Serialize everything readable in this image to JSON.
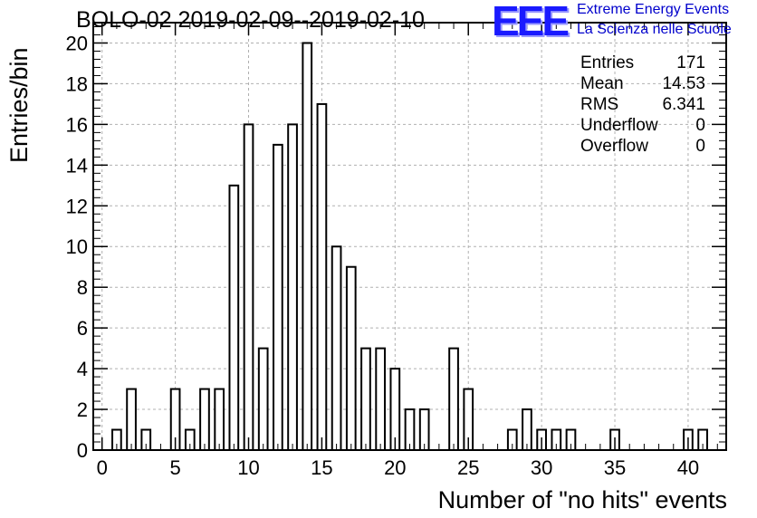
{
  "chart_data": {
    "type": "bar",
    "title": "BOLO-02 2019-02-09--2019-02-10",
    "xlabel": "Number of \"no hits\" events",
    "ylabel": "Entries/bin",
    "xlim": [
      -0.6,
      42.6
    ],
    "ylim": [
      0,
      21
    ],
    "xticks": [
      0,
      5,
      10,
      15,
      20,
      25,
      30,
      35,
      40
    ],
    "yticks": [
      0,
      2,
      4,
      6,
      8,
      10,
      12,
      14,
      16,
      18,
      20
    ],
    "grid": true,
    "bins": [
      {
        "x": 1,
        "value": 1
      },
      {
        "x": 2,
        "value": 3
      },
      {
        "x": 3,
        "value": 1
      },
      {
        "x": 5,
        "value": 3
      },
      {
        "x": 6,
        "value": 1
      },
      {
        "x": 7,
        "value": 3
      },
      {
        "x": 8,
        "value": 3
      },
      {
        "x": 9,
        "value": 13
      },
      {
        "x": 10,
        "value": 16
      },
      {
        "x": 11,
        "value": 5
      },
      {
        "x": 12,
        "value": 15
      },
      {
        "x": 13,
        "value": 16
      },
      {
        "x": 14,
        "value": 20
      },
      {
        "x": 15,
        "value": 17
      },
      {
        "x": 16,
        "value": 10
      },
      {
        "x": 17,
        "value": 9
      },
      {
        "x": 18,
        "value": 5
      },
      {
        "x": 19,
        "value": 5
      },
      {
        "x": 20,
        "value": 4
      },
      {
        "x": 21,
        "value": 2
      },
      {
        "x": 22,
        "value": 2
      },
      {
        "x": 24,
        "value": 5
      },
      {
        "x": 25,
        "value": 3
      },
      {
        "x": 28,
        "value": 1
      },
      {
        "x": 29,
        "value": 2
      },
      {
        "x": 30,
        "value": 1
      },
      {
        "x": 31,
        "value": 1
      },
      {
        "x": 32,
        "value": 1
      },
      {
        "x": 35,
        "value": 1
      },
      {
        "x": 40,
        "value": 1
      },
      {
        "x": 41,
        "value": 1
      }
    ],
    "stats": [
      {
        "label": "Entries",
        "value": "171"
      },
      {
        "label": "Mean",
        "value": "14.53"
      },
      {
        "label": "RMS",
        "value": "6.341"
      },
      {
        "label": "Underflow",
        "value": "0"
      },
      {
        "label": "Overflow",
        "value": "0"
      }
    ]
  },
  "logo": {
    "mark": "EEE",
    "line1": "Extreme Energy Events",
    "line2": "La Scienza nelle Scuole",
    "color": "#1a1aff"
  }
}
